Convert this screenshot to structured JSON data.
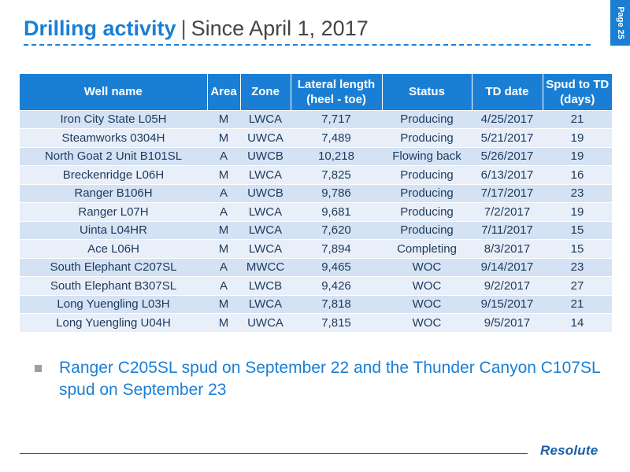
{
  "header": {
    "title_bold": "Drilling activity",
    "title_separator": "|",
    "title_rest": "Since April 1, 2017",
    "page_label": "Page 25"
  },
  "table": {
    "columns": [
      "Well name",
      "Area",
      "Zone",
      "Lateral length (heel - toe)",
      "Status",
      "TD date",
      "Spud to TD (days)"
    ],
    "rows": [
      [
        "Iron City State L05H",
        "M",
        "LWCA",
        "7,717",
        "Producing",
        "4/25/2017",
        "21"
      ],
      [
        "Steamworks 0304H",
        "M",
        "UWCA",
        "7,489",
        "Producing",
        "5/21/2017",
        "19"
      ],
      [
        "North Goat 2 Unit B101SL",
        "A",
        "UWCB",
        "10,218",
        "Flowing back",
        "5/26/2017",
        "19"
      ],
      [
        "Breckenridge L06H",
        "M",
        "LWCA",
        "7,825",
        "Producing",
        "6/13/2017",
        "16"
      ],
      [
        "Ranger B106H",
        "A",
        "UWCB",
        "9,786",
        "Producing",
        "7/17/2017",
        "23"
      ],
      [
        "Ranger L07H",
        "A",
        "LWCA",
        "9,681",
        "Producing",
        "7/2/2017",
        "19"
      ],
      [
        "Uinta L04HR",
        "M",
        "LWCA",
        "7,620",
        "Producing",
        "7/11/2017",
        "15"
      ],
      [
        "Ace L06H",
        "M",
        "LWCA",
        "7,894",
        "Completing",
        "8/3/2017",
        "15"
      ],
      [
        "South Elephant C207SL",
        "A",
        "MWCC",
        "9,465",
        "WOC",
        "9/14/2017",
        "23"
      ],
      [
        "South Elephant B307SL",
        "A",
        "LWCB",
        "9,426",
        "WOC",
        "9/2/2017",
        "27"
      ],
      [
        "Long Yuengling L03H",
        "M",
        "LWCA",
        "7,818",
        "WOC",
        "9/15/2017",
        "21"
      ],
      [
        "Long Yuengling U04H",
        "M",
        "UWCA",
        "7,815",
        "WOC",
        "9/5/2017",
        "14"
      ]
    ]
  },
  "bullets": [
    "Ranger C205SL spud on September 22 and the Thunder Canyon C107SL spud on September 23"
  ],
  "footer": {
    "logo_text": "Resolute"
  },
  "colors": {
    "accent": "#1a7fd4",
    "row_odd": "#d4e2f4",
    "row_even": "#e9eff9"
  }
}
